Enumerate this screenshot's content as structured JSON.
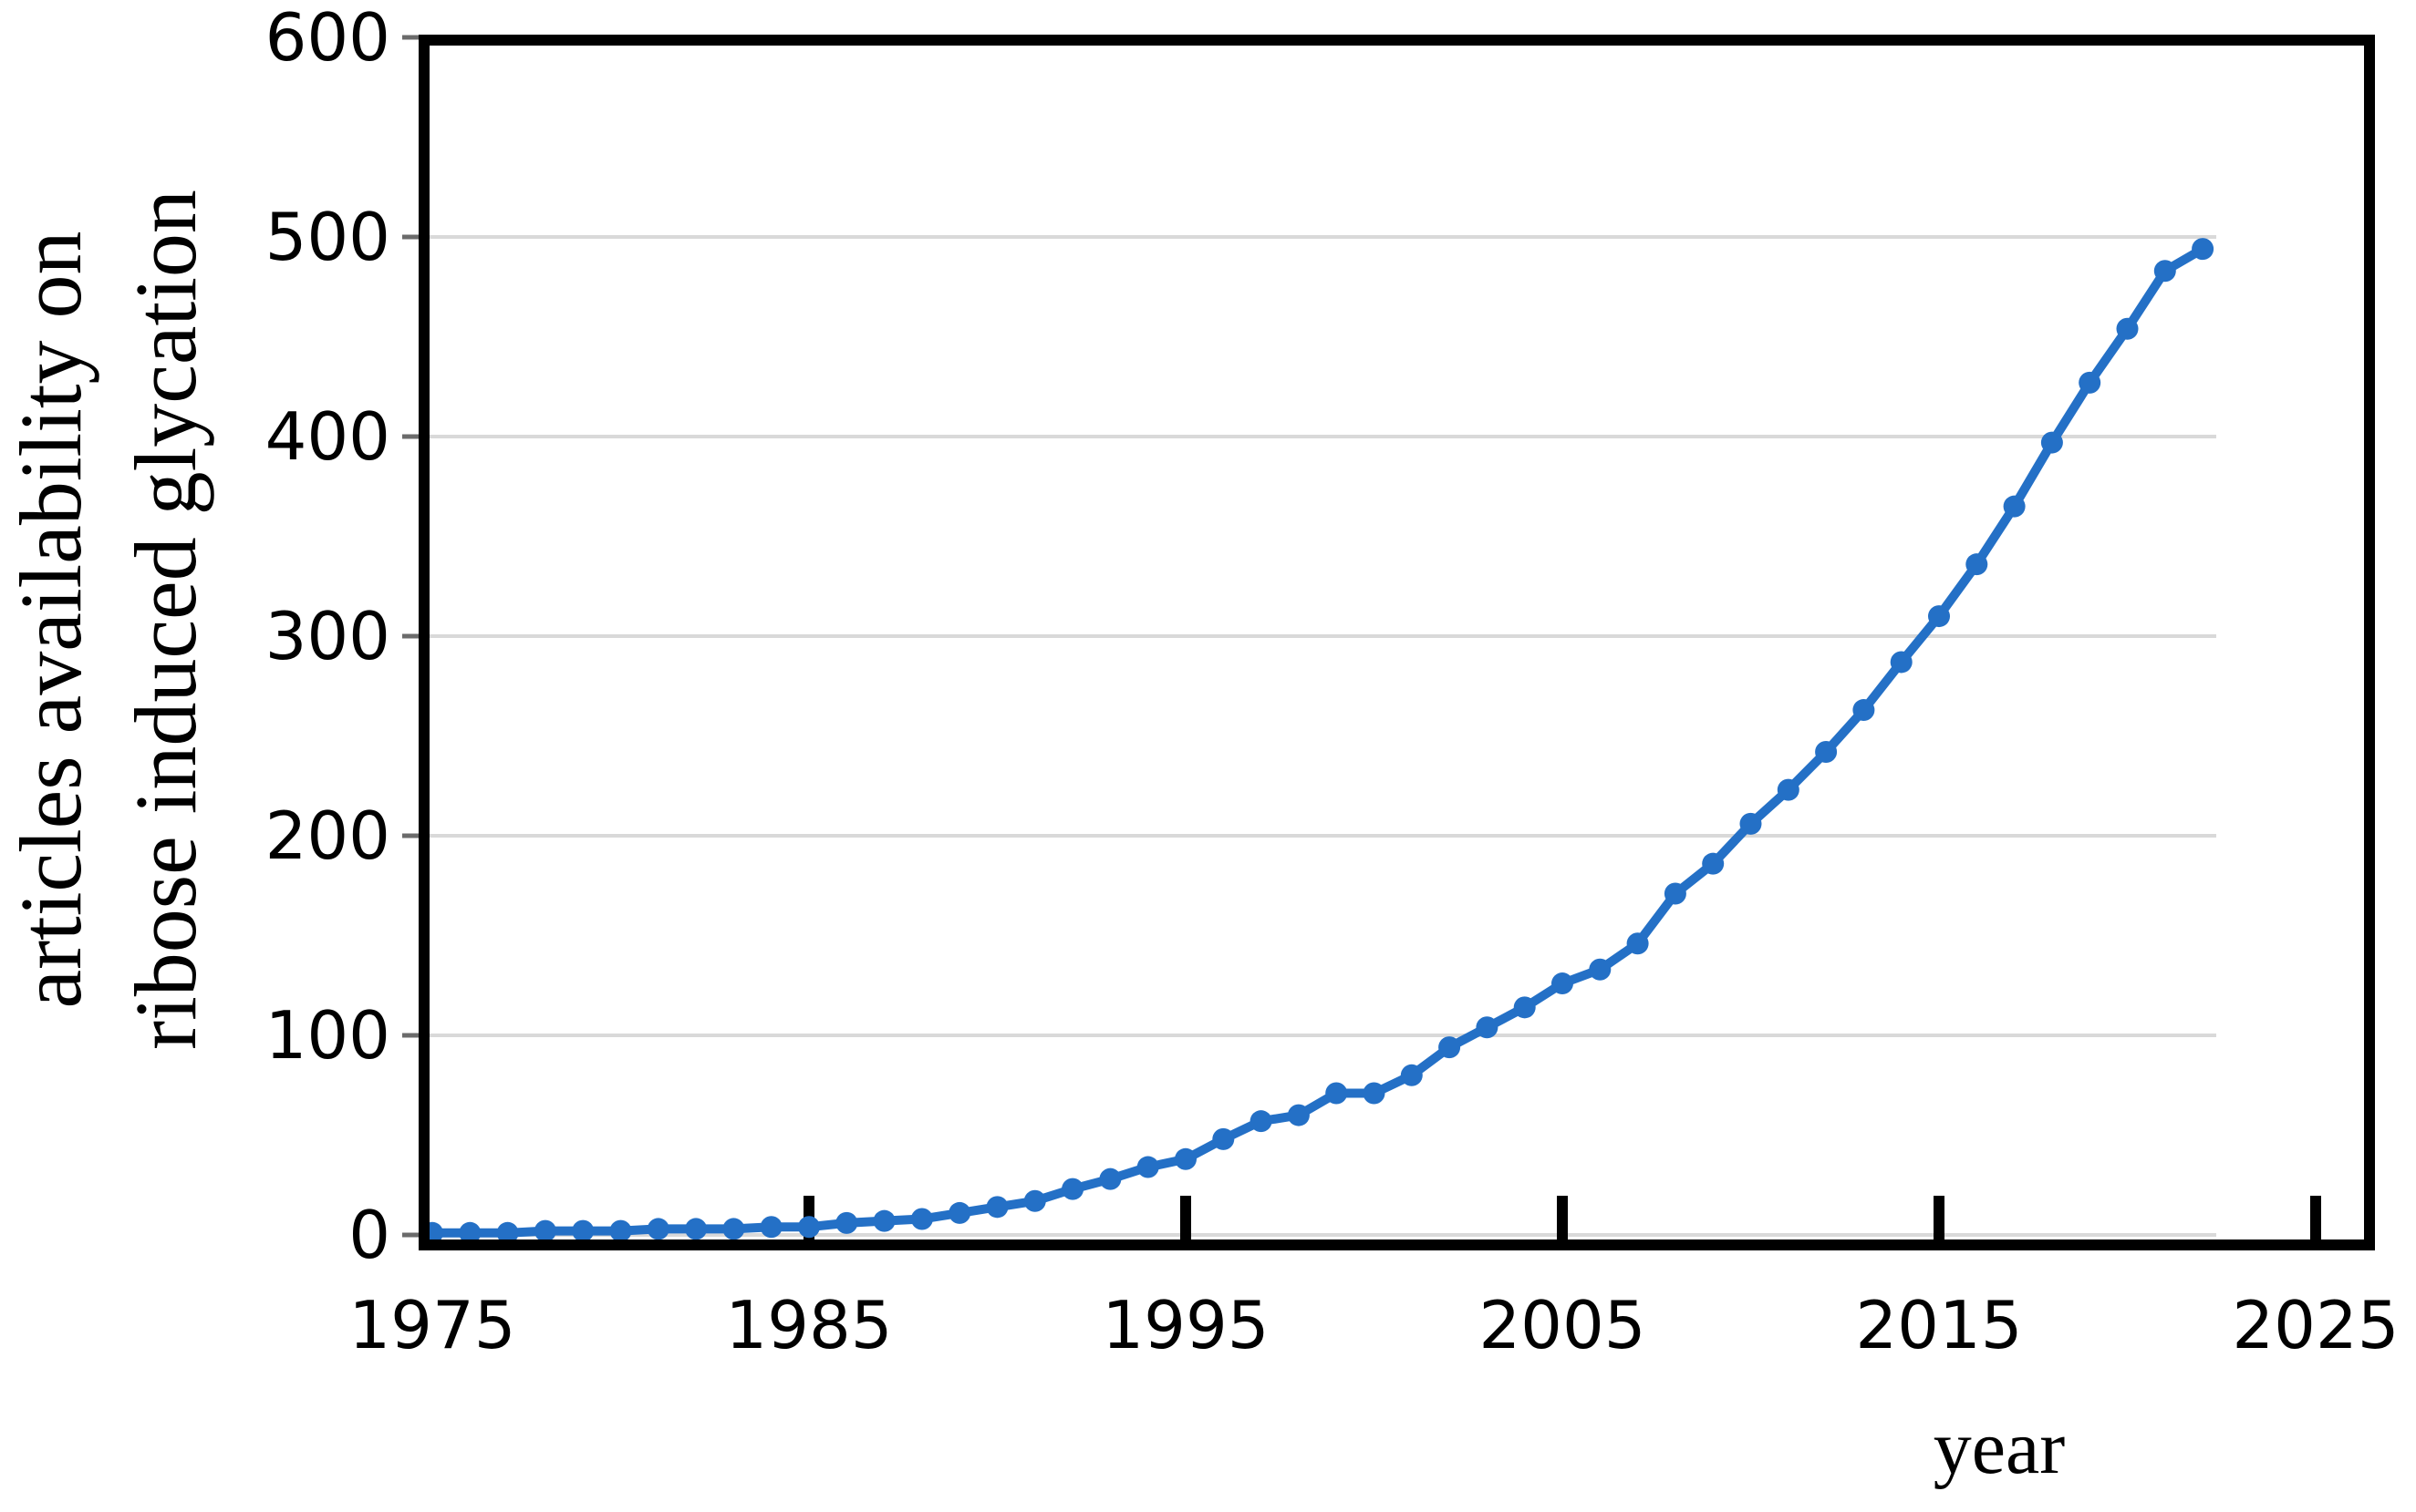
{
  "chart_data": {
    "type": "line",
    "title": "",
    "xlabel": "year",
    "ylabel_lines": [
      "articles availability on",
      "ribose induced glycation"
    ],
    "x": [
      1975,
      1976,
      1977,
      1978,
      1979,
      1980,
      1981,
      1982,
      1983,
      1984,
      1985,
      1986,
      1987,
      1988,
      1989,
      1990,
      1991,
      1992,
      1993,
      1994,
      1995,
      1996,
      1997,
      1998,
      1999,
      2000,
      2001,
      2002,
      2003,
      2004,
      2005,
      2006,
      2007,
      2008,
      2009,
      2010,
      2011,
      2012,
      2013,
      2014,
      2015,
      2016,
      2017,
      2018,
      2019,
      2020,
      2021,
      2022
    ],
    "values": [
      1,
      1,
      1,
      2,
      2,
      2,
      3,
      3,
      3,
      4,
      4,
      6,
      7,
      8,
      11,
      14,
      17,
      23,
      28,
      34,
      38,
      48,
      57,
      60,
      71,
      71,
      80,
      94,
      104,
      114,
      126,
      133,
      146,
      171,
      186,
      206,
      223,
      242,
      263,
      287,
      310,
      336,
      365,
      397,
      427,
      454,
      483,
      494
    ],
    "xlim": [
      1975,
      2025
    ],
    "ylim": [
      0,
      600
    ],
    "x_ticks": [
      1975,
      1985,
      1995,
      2005,
      2015,
      2025
    ],
    "y_ticks": [
      0,
      100,
      200,
      300,
      400,
      500,
      600
    ],
    "grid": true,
    "legend": false,
    "marker": "circle",
    "line_color": "#2470C6",
    "grid_color": "#D9D9D9",
    "frame_color": "#000000",
    "text_color": "#000000",
    "outer_tick_color": "#6b6b6b"
  }
}
